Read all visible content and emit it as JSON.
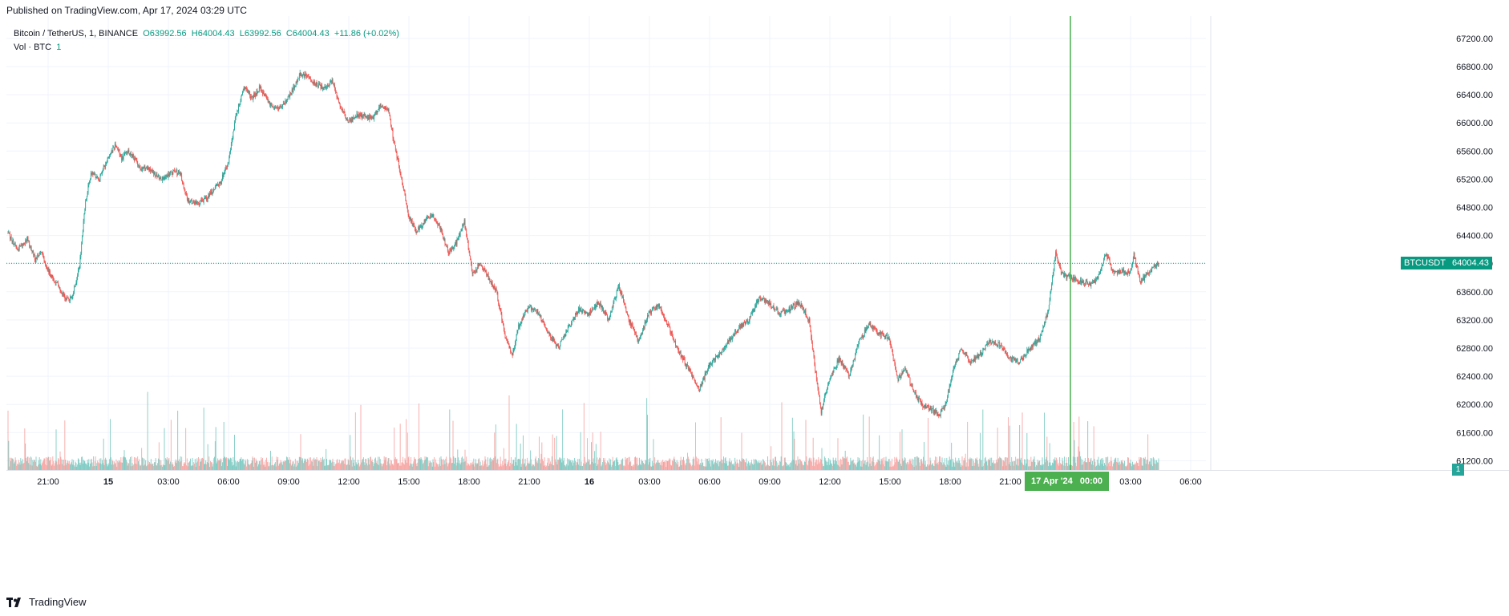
{
  "header": {
    "published": "Published on TradingView.com, Apr 17, 2024 03:29 UTC"
  },
  "legend": {
    "symbol": "Bitcoin / TetherUS, 1, BINANCE",
    "open": "O63992.56",
    "high": "H64004.43",
    "low": "L63992.56",
    "close": "C64004.43",
    "change": "+11.86 (+0.02%)",
    "volume_label": "Vol · BTC",
    "volume_value": "1"
  },
  "badges": {
    "symbol": "BTCUSDT",
    "last_price": "64004.43",
    "crosshair_time": "17 Apr '24",
    "crosshair_clock": "00:00",
    "volume": "1"
  },
  "brand": {
    "name": "TradingView"
  },
  "colors": {
    "up": "#26a69a",
    "down": "#ef5350",
    "up_volume": "#80cbc4",
    "down_volume": "#f7a9a7",
    "crosshair": "#4caf50",
    "price_line": "#089981",
    "grid": "#f0f3fa"
  },
  "chart_data": {
    "type": "candlestick",
    "symbol": "Bitcoin / TetherUS",
    "interval": "1",
    "exchange": "BINANCE",
    "last_close": 64004.43,
    "y_ticks": [
      61200,
      61600,
      62000,
      62400,
      62800,
      63200,
      63600,
      64000,
      64400,
      64800,
      65200,
      65600,
      66000,
      66400,
      66800,
      67200
    ],
    "y_tick_labels": [
      "61200.00",
      "61600.00",
      "62000.00",
      "62400.00",
      "62800.00",
      "63200.00",
      "63600.00",
      "64000.00",
      "64400.00",
      "64800.00",
      "65200.00",
      "65600.00",
      "66000.00",
      "66400.00",
      "66800.00",
      "67200.00"
    ],
    "x_ticks": [
      {
        "label": "21:00",
        "hours": 0
      },
      {
        "label": "15",
        "hours": 3
      },
      {
        "label": "03:00",
        "hours": 6
      },
      {
        "label": "06:00",
        "hours": 9
      },
      {
        "label": "09:00",
        "hours": 12
      },
      {
        "label": "12:00",
        "hours": 15
      },
      {
        "label": "15:00",
        "hours": 18
      },
      {
        "label": "18:00",
        "hours": 21
      },
      {
        "label": "21:00",
        "hours": 24
      },
      {
        "label": "16",
        "hours": 27
      },
      {
        "label": "03:00",
        "hours": 30
      },
      {
        "label": "06:00",
        "hours": 33
      },
      {
        "label": "09:00",
        "hours": 36
      },
      {
        "label": "12:00",
        "hours": 39
      },
      {
        "label": "15:00",
        "hours": 42
      },
      {
        "label": "18:00",
        "hours": 45
      },
      {
        "label": "21:00",
        "hours": 48
      },
      {
        "label": "00:00",
        "hours": 51
      },
      {
        "label": "03:00",
        "hours": 54
      },
      {
        "label": "06:00",
        "hours": 57
      }
    ],
    "crosshair_hours": 51,
    "path": [
      [
        -2.0,
        64450
      ],
      [
        -1.5,
        64200
      ],
      [
        -1.0,
        64350
      ],
      [
        -0.6,
        64050
      ],
      [
        -0.3,
        64200
      ],
      [
        0.0,
        63900
      ],
      [
        0.5,
        63700
      ],
      [
        0.9,
        63500
      ],
      [
        1.2,
        63500
      ],
      [
        1.6,
        63950
      ],
      [
        1.9,
        64900
      ],
      [
        2.2,
        65300
      ],
      [
        2.6,
        65200
      ],
      [
        3.0,
        65500
      ],
      [
        3.4,
        65700
      ],
      [
        3.7,
        65500
      ],
      [
        4.0,
        65600
      ],
      [
        4.3,
        65500
      ],
      [
        4.7,
        65350
      ],
      [
        5.0,
        65350
      ],
      [
        5.4,
        65250
      ],
      [
        5.8,
        65200
      ],
      [
        6.2,
        65300
      ],
      [
        6.6,
        65300
      ],
      [
        7.0,
        64900
      ],
      [
        7.5,
        64850
      ],
      [
        8.0,
        64950
      ],
      [
        8.6,
        65150
      ],
      [
        9.0,
        65400
      ],
      [
        9.4,
        66100
      ],
      [
        9.8,
        66500
      ],
      [
        10.2,
        66350
      ],
      [
        10.6,
        66500
      ],
      [
        11.0,
        66300
      ],
      [
        11.4,
        66200
      ],
      [
        11.8,
        66250
      ],
      [
        12.2,
        66450
      ],
      [
        12.6,
        66700
      ],
      [
        13.0,
        66650
      ],
      [
        13.4,
        66550
      ],
      [
        13.8,
        66500
      ],
      [
        14.2,
        66600
      ],
      [
        14.6,
        66250
      ],
      [
        15.0,
        66000
      ],
      [
        15.4,
        66100
      ],
      [
        15.8,
        66100
      ],
      [
        16.2,
        66050
      ],
      [
        16.6,
        66250
      ],
      [
        17.0,
        66200
      ],
      [
        17.3,
        65700
      ],
      [
        17.6,
        65300
      ],
      [
        18.0,
        64700
      ],
      [
        18.4,
        64450
      ],
      [
        18.8,
        64600
      ],
      [
        19.2,
        64700
      ],
      [
        19.6,
        64500
      ],
      [
        20.0,
        64150
      ],
      [
        20.4,
        64300
      ],
      [
        20.8,
        64600
      ],
      [
        21.2,
        63850
      ],
      [
        21.6,
        64000
      ],
      [
        22.0,
        63800
      ],
      [
        22.4,
        63600
      ],
      [
        22.8,
        63000
      ],
      [
        23.2,
        62700
      ],
      [
        23.5,
        63100
      ],
      [
        24.0,
        63400
      ],
      [
        24.5,
        63300
      ],
      [
        25.0,
        63000
      ],
      [
        25.5,
        62800
      ],
      [
        26.0,
        63100
      ],
      [
        26.5,
        63350
      ],
      [
        27.0,
        63300
      ],
      [
        27.5,
        63450
      ],
      [
        28.0,
        63200
      ],
      [
        28.5,
        63700
      ],
      [
        29.0,
        63200
      ],
      [
        29.5,
        62900
      ],
      [
        30.0,
        63300
      ],
      [
        30.5,
        63400
      ],
      [
        31.0,
        63100
      ],
      [
        31.5,
        62750
      ],
      [
        32.0,
        62500
      ],
      [
        32.5,
        62200
      ],
      [
        33.0,
        62550
      ],
      [
        33.5,
        62700
      ],
      [
        34.0,
        62900
      ],
      [
        34.5,
        63100
      ],
      [
        35.0,
        63200
      ],
      [
        35.5,
        63500
      ],
      [
        36.0,
        63450
      ],
      [
        36.5,
        63300
      ],
      [
        37.0,
        63350
      ],
      [
        37.5,
        63450
      ],
      [
        38.0,
        63200
      ],
      [
        38.3,
        62500
      ],
      [
        38.6,
        61900
      ],
      [
        39.0,
        62350
      ],
      [
        39.5,
        62650
      ],
      [
        40.0,
        62400
      ],
      [
        40.5,
        62900
      ],
      [
        41.0,
        63150
      ],
      [
        41.5,
        63000
      ],
      [
        42.0,
        62950
      ],
      [
        42.4,
        62350
      ],
      [
        42.8,
        62500
      ],
      [
        43.2,
        62200
      ],
      [
        43.6,
        62000
      ],
      [
        44.0,
        61950
      ],
      [
        44.5,
        61850
      ],
      [
        44.8,
        62000
      ],
      [
        45.2,
        62500
      ],
      [
        45.6,
        62800
      ],
      [
        46.0,
        62600
      ],
      [
        46.5,
        62700
      ],
      [
        47.0,
        62900
      ],
      [
        47.5,
        62850
      ],
      [
        48.0,
        62650
      ],
      [
        48.5,
        62600
      ],
      [
        49.0,
        62800
      ],
      [
        49.5,
        62950
      ],
      [
        49.9,
        63300
      ],
      [
        50.3,
        64150
      ],
      [
        50.6,
        63850
      ],
      [
        51.0,
        63800
      ],
      [
        51.5,
        63750
      ],
      [
        52.0,
        63700
      ],
      [
        52.4,
        63800
      ],
      [
        52.8,
        64150
      ],
      [
        53.2,
        63850
      ],
      [
        53.6,
        63900
      ],
      [
        54.0,
        63850
      ],
      [
        54.2,
        64150
      ],
      [
        54.5,
        63750
      ],
      [
        54.9,
        63850
      ],
      [
        55.2,
        63950
      ],
      [
        55.4,
        64004.43
      ]
    ]
  }
}
